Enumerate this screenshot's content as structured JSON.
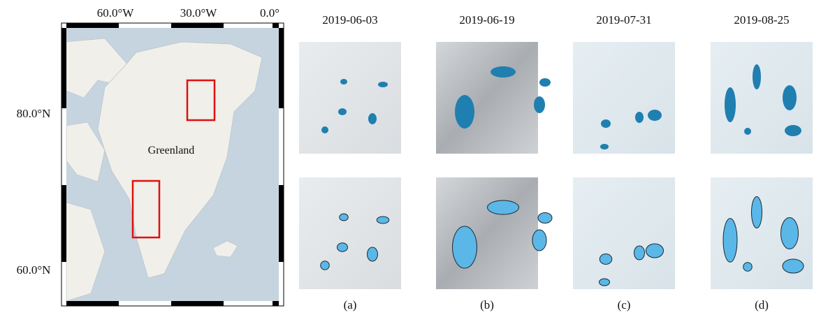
{
  "map": {
    "lon_labels": [
      "60.0°W",
      "30.0°W",
      "0.0°"
    ],
    "lat_labels": [
      "80.0°N",
      "60.0°N"
    ],
    "label": "Greenland"
  },
  "panels": [
    {
      "date": "2019-06-03",
      "caption": "(a)"
    },
    {
      "date": "2019-06-19",
      "caption": "(b)"
    },
    {
      "date": "2019-07-31",
      "caption": "(c)"
    },
    {
      "date": "2019-08-25",
      "caption": "(d)"
    }
  ]
}
